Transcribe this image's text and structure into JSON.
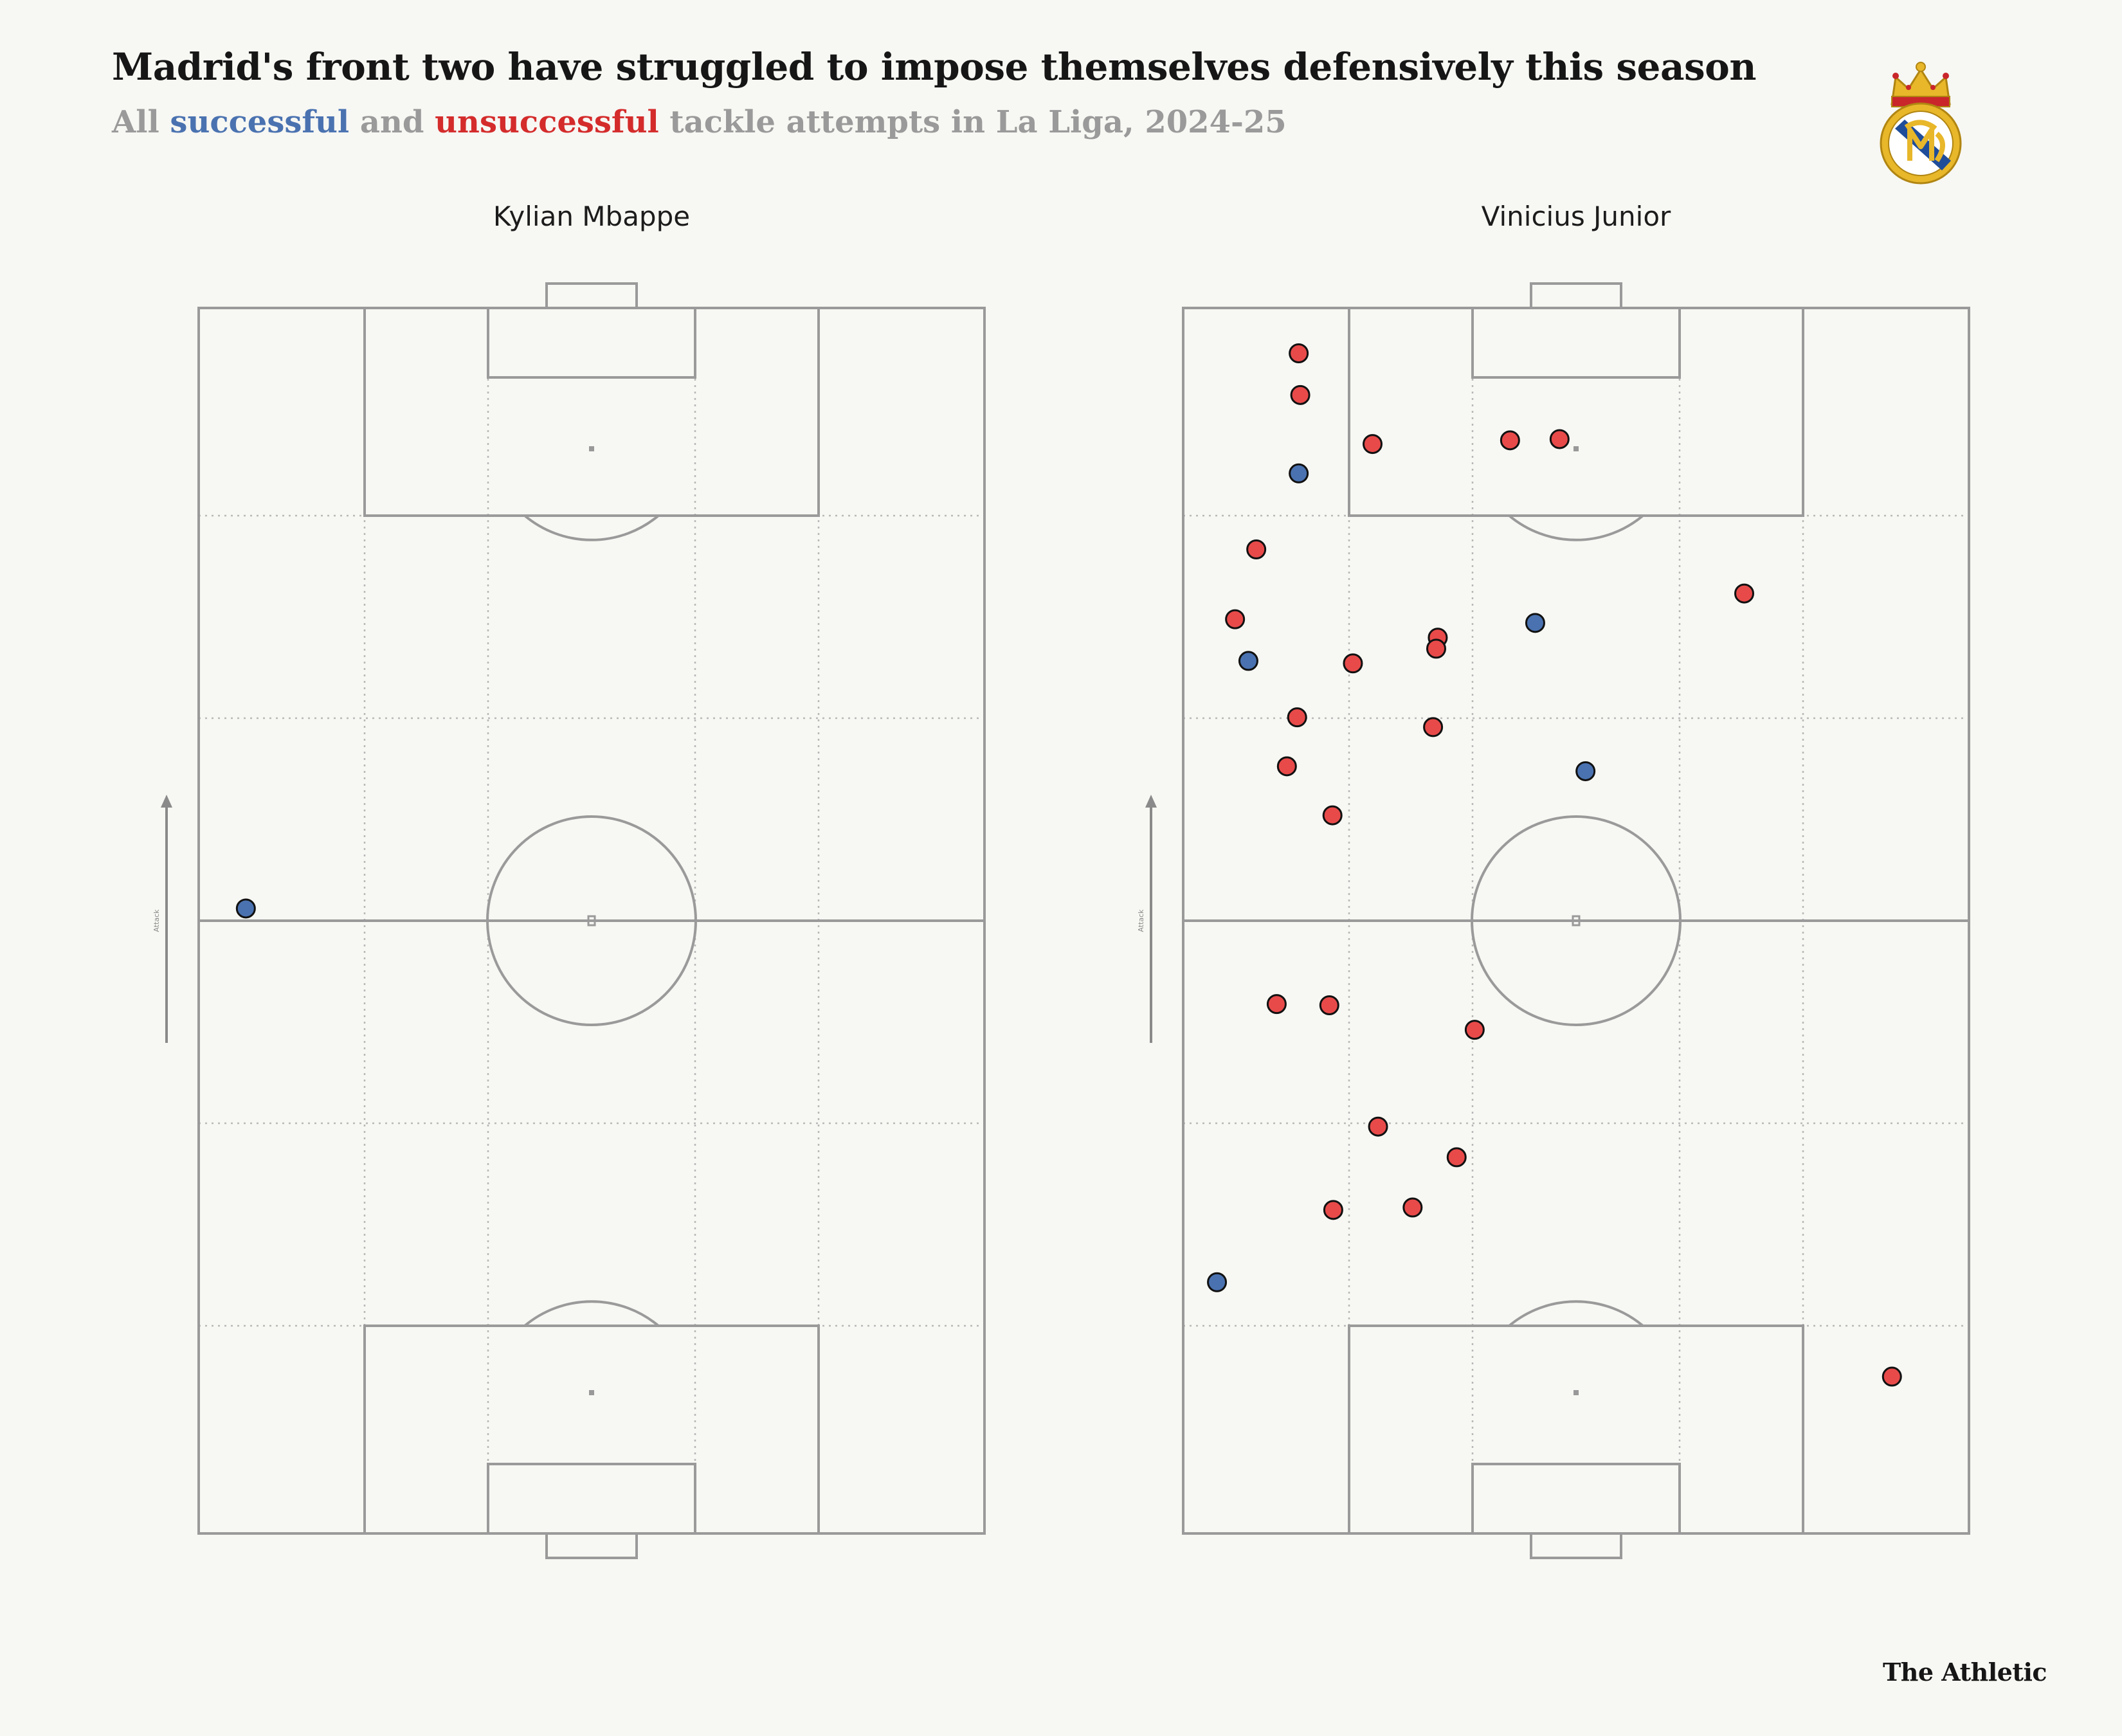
{
  "title": "Madrid's front two have struggled to impose themselves defensively this season",
  "subtitle": {
    "prefix": "All ",
    "successful": "successful",
    "middle": " and ",
    "unsuccessful": "unsuccessful",
    "suffix": " tackle attempts in La Liga, 2024-25"
  },
  "colors": {
    "successful": "#4a72b0",
    "unsuccessful": "#e84a4a",
    "pitch_lines": "#9a9a9a",
    "background": "#f7f7f3"
  },
  "direction_label": "Attack",
  "credit": "The Athletic",
  "crest_icon": "real-madrid-crest-icon",
  "chart_data": [
    {
      "type": "scatter",
      "title": "Kylian Mbappe",
      "x_unit": "pitch width 0-100 (left to right)",
      "y_unit": "pitch length 0-100 (own goal to opponent goal, attacking upward)",
      "xlim": [
        0,
        100
      ],
      "ylim": [
        0,
        100
      ],
      "series": [
        {
          "name": "successful",
          "points": [
            {
              "x": 6,
              "y": 51
            }
          ]
        },
        {
          "name": "unsuccessful",
          "points": []
        }
      ]
    },
    {
      "type": "scatter",
      "title": "Vinicius Junior",
      "x_unit": "pitch width 0-100 (left to right)",
      "y_unit": "pitch length 0-100 (own goal to opponent goal, attacking upward)",
      "xlim": [
        0,
        100
      ],
      "ylim": [
        0,
        100
      ],
      "series": [
        {
          "name": "successful",
          "points": [
            {
              "x": 14.7,
              "y": 86.5
            },
            {
              "x": 8.3,
              "y": 71.2
            },
            {
              "x": 44.8,
              "y": 74.3
            },
            {
              "x": 51.2,
              "y": 62.2
            },
            {
              "x": 4.3,
              "y": 20.5
            }
          ]
        },
        {
          "name": "unsuccessful",
          "points": [
            {
              "x": 14.7,
              "y": 96.3
            },
            {
              "x": 14.9,
              "y": 92.9
            },
            {
              "x": 24.1,
              "y": 88.9
            },
            {
              "x": 41.6,
              "y": 89.2
            },
            {
              "x": 47.9,
              "y": 89.3
            },
            {
              "x": 9.3,
              "y": 80.3
            },
            {
              "x": 6.6,
              "y": 74.6
            },
            {
              "x": 71.4,
              "y": 76.7
            },
            {
              "x": 32.4,
              "y": 73.1
            },
            {
              "x": 32.2,
              "y": 72.2
            },
            {
              "x": 21.6,
              "y": 71.0
            },
            {
              "x": 14.5,
              "y": 66.6
            },
            {
              "x": 31.8,
              "y": 65.8
            },
            {
              "x": 13.2,
              "y": 62.6
            },
            {
              "x": 19.0,
              "y": 58.6
            },
            {
              "x": 11.9,
              "y": 43.2
            },
            {
              "x": 18.6,
              "y": 43.1
            },
            {
              "x": 37.1,
              "y": 41.1
            },
            {
              "x": 24.8,
              "y": 33.2
            },
            {
              "x": 34.8,
              "y": 30.7
            },
            {
              "x": 19.1,
              "y": 26.4
            },
            {
              "x": 29.2,
              "y": 26.6
            },
            {
              "x": 90.2,
              "y": 12.8
            }
          ]
        }
      ]
    }
  ]
}
